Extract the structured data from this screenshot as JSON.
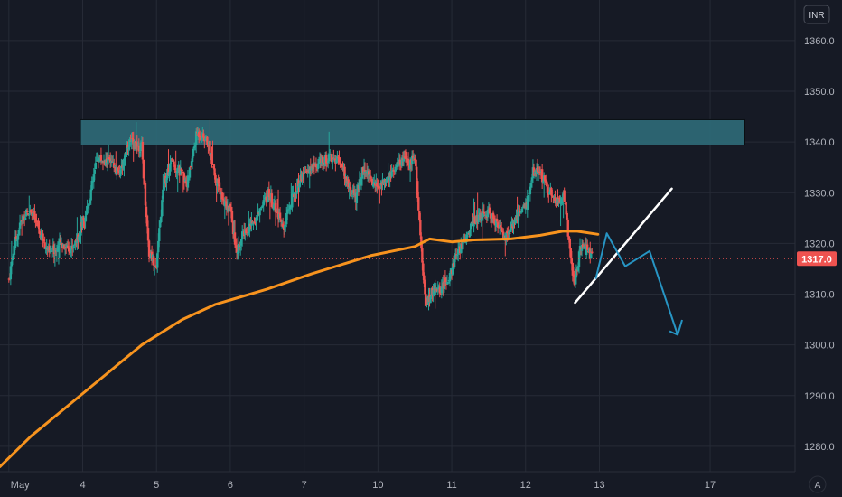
{
  "chart_data": {
    "type": "candlestick",
    "currency": "INR",
    "last_price": 1317.0,
    "last_price_label": "1317.0",
    "ylim": [
      1275,
      1368
    ],
    "y_ticks": [
      {
        "value": 1360,
        "label": "1360.0"
      },
      {
        "value": 1350,
        "label": "1350.0"
      },
      {
        "value": 1340,
        "label": "1340.0"
      },
      {
        "value": 1330,
        "label": "1330.0"
      },
      {
        "value": 1320,
        "label": "1320.0"
      },
      {
        "value": 1310,
        "label": "1310.0"
      },
      {
        "value": 1300,
        "label": "1300.0"
      },
      {
        "value": 1290,
        "label": "1290.0"
      },
      {
        "value": 1280,
        "label": "1280.0"
      }
    ],
    "x_ticks": [
      {
        "t": 0.0,
        "label": "May"
      },
      {
        "t": 1.0,
        "label": "4"
      },
      {
        "t": 2.0,
        "label": "5"
      },
      {
        "t": 3.0,
        "label": "6"
      },
      {
        "t": 4.0,
        "label": "7"
      },
      {
        "t": 5.0,
        "label": "10"
      },
      {
        "t": 6.0,
        "label": "11"
      },
      {
        "t": 7.0,
        "label": "12"
      },
      {
        "t": 8.0,
        "label": "13"
      },
      {
        "t": 9.5,
        "label": "17"
      }
    ],
    "xlim": [
      -0.12,
      10.65
    ],
    "x_data_end": 7.9,
    "price_keypoints": [
      [
        0.0,
        1313
      ],
      [
        0.08,
        1320
      ],
      [
        0.18,
        1325
      ],
      [
        0.3,
        1327
      ],
      [
        0.42,
        1322
      ],
      [
        0.55,
        1318
      ],
      [
        0.7,
        1320
      ],
      [
        0.85,
        1319
      ],
      [
        0.95,
        1322
      ],
      [
        1.08,
        1328
      ],
      [
        1.2,
        1337
      ],
      [
        1.35,
        1336
      ],
      [
        1.5,
        1334
      ],
      [
        1.62,
        1340
      ],
      [
        1.8,
        1339
      ],
      [
        1.9,
        1318
      ],
      [
        2.0,
        1316
      ],
      [
        2.1,
        1332
      ],
      [
        2.2,
        1336
      ],
      [
        2.32,
        1334
      ],
      [
        2.42,
        1332
      ],
      [
        2.55,
        1342
      ],
      [
        2.7,
        1340
      ],
      [
        2.8,
        1333
      ],
      [
        2.9,
        1328
      ],
      [
        3.0,
        1327
      ],
      [
        3.08,
        1318
      ],
      [
        3.18,
        1322
      ],
      [
        3.3,
        1324
      ],
      [
        3.42,
        1327
      ],
      [
        3.52,
        1330
      ],
      [
        3.62,
        1326
      ],
      [
        3.72,
        1323
      ],
      [
        3.82,
        1328
      ],
      [
        3.92,
        1332
      ],
      [
        4.0,
        1334
      ],
      [
        4.12,
        1335
      ],
      [
        4.25,
        1336
      ],
      [
        4.38,
        1337
      ],
      [
        4.5,
        1336
      ],
      [
        4.6,
        1331
      ],
      [
        4.7,
        1329
      ],
      [
        4.8,
        1335
      ],
      [
        4.9,
        1333
      ],
      [
        5.0,
        1331
      ],
      [
        5.1,
        1333
      ],
      [
        5.2,
        1334
      ],
      [
        5.3,
        1336
      ],
      [
        5.42,
        1336
      ],
      [
        5.5,
        1337
      ],
      [
        5.58,
        1320
      ],
      [
        5.65,
        1308
      ],
      [
        5.75,
        1311
      ],
      [
        5.85,
        1311
      ],
      [
        5.95,
        1313
      ],
      [
        6.05,
        1317
      ],
      [
        6.15,
        1320
      ],
      [
        6.28,
        1324
      ],
      [
        6.38,
        1325
      ],
      [
        6.5,
        1326
      ],
      [
        6.62,
        1324
      ],
      [
        6.72,
        1321
      ],
      [
        6.82,
        1323
      ],
      [
        6.92,
        1326
      ],
      [
        7.02,
        1328
      ],
      [
        7.1,
        1334
      ],
      [
        7.2,
        1334
      ],
      [
        7.32,
        1330
      ],
      [
        7.42,
        1328
      ],
      [
        7.52,
        1330
      ],
      [
        7.6,
        1319
      ],
      [
        7.66,
        1312
      ],
      [
        7.74,
        1319
      ],
      [
        7.82,
        1319
      ],
      [
        7.9,
        1317
      ]
    ],
    "ema": [
      [
        -0.12,
        1276
      ],
      [
        0.3,
        1282
      ],
      [
        0.8,
        1288
      ],
      [
        1.3,
        1294
      ],
      [
        1.8,
        1300
      ],
      [
        2.35,
        1305
      ],
      [
        2.8,
        1308
      ],
      [
        3.5,
        1311
      ],
      [
        4.1,
        1314
      ],
      [
        4.5,
        1315.8
      ],
      [
        4.9,
        1317.6
      ],
      [
        5.5,
        1319.4
      ],
      [
        5.7,
        1320.9
      ],
      [
        6.0,
        1320.3
      ],
      [
        6.3,
        1320.7
      ],
      [
        6.8,
        1320.9
      ],
      [
        7.2,
        1321.6
      ],
      [
        7.5,
        1322.4
      ],
      [
        7.7,
        1322.4
      ],
      [
        7.98,
        1321.8
      ]
    ],
    "resistance_zone": {
      "t0": 0.97,
      "t1": 9.97,
      "ylow": 1339.4,
      "yhigh": 1344.4
    },
    "support_line": [
      [
        7.67,
        1308.3
      ],
      [
        8.98,
        1330.8
      ]
    ],
    "projection_path": [
      [
        7.95,
        1313
      ],
      [
        8.1,
        1322
      ],
      [
        8.35,
        1315.5
      ],
      [
        8.68,
        1318.5
      ],
      [
        9.06,
        1302
      ],
      [
        9.12,
        1303.5
      ]
    ],
    "colors": {
      "background": "#161a25",
      "grid": "#262b36",
      "up": "#26a69a",
      "down": "#ef5350",
      "ema": "#f7931e",
      "zone_fill": "#2f6b79",
      "zone_stroke": "#0a0d12",
      "support": "#ffffff",
      "projection": "#2795c4",
      "price_line": "#ef5350",
      "axis_text": "#b2b5be"
    }
  },
  "auto_scale_label": "A"
}
